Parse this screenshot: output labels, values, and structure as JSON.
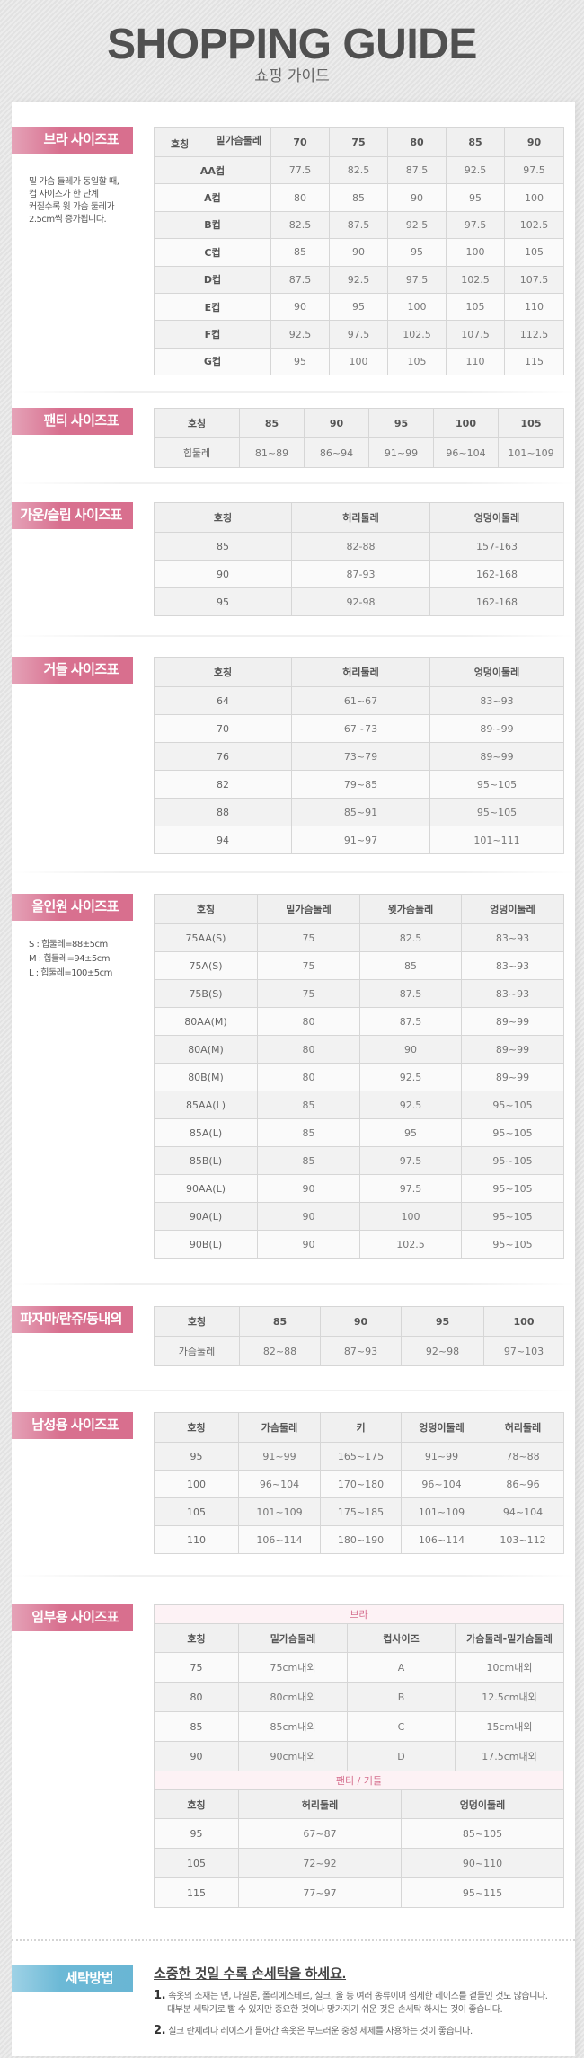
{
  "header": {
    "title": "SHOPPING GUIDE",
    "subtitle": "쇼핑 가이드"
  },
  "colors": {
    "label_pink": "#d8708f",
    "label_blue": "#69b6d4",
    "sub_header_pink": "#d56e8e"
  },
  "bra": {
    "label": "브라 사이즈표",
    "note": [
      "밑 가슴 둘레가 동일할 때,",
      "컵 사이즈가 한 단계",
      "커질수록 윗 가슴 둘레가",
      "2.5cm씩 증가됩니다."
    ],
    "corner_top": "밑가슴둘레",
    "corner_bottom": "호칭",
    "columns": [
      "70",
      "75",
      "80",
      "85",
      "90"
    ],
    "rows": [
      [
        "AA컵",
        "77.5",
        "82.5",
        "87.5",
        "92.5",
        "97.5"
      ],
      [
        "A컵",
        "80",
        "85",
        "90",
        "95",
        "100"
      ],
      [
        "B컵",
        "82.5",
        "87.5",
        "92.5",
        "97.5",
        "102.5"
      ],
      [
        "C컵",
        "85",
        "90",
        "95",
        "100",
        "105"
      ],
      [
        "D컵",
        "87.5",
        "92.5",
        "97.5",
        "102.5",
        "107.5"
      ],
      [
        "E컵",
        "90",
        "95",
        "100",
        "105",
        "110"
      ],
      [
        "F컵",
        "92.5",
        "97.5",
        "102.5",
        "107.5",
        "112.5"
      ],
      [
        "G컵",
        "95",
        "100",
        "105",
        "110",
        "115"
      ]
    ]
  },
  "panty": {
    "label": "팬티 사이즈표",
    "columns": [
      "호칭",
      "85",
      "90",
      "95",
      "100",
      "105"
    ],
    "rows": [
      [
        "힙둘레",
        "81~89",
        "86~94",
        "91~99",
        "96~104",
        "101~109"
      ]
    ]
  },
  "gown": {
    "label": "가운/슬립 사이즈표",
    "columns": [
      "호칭",
      "허리둘레",
      "엉덩이둘레"
    ],
    "rows": [
      [
        "85",
        "82-88",
        "157-163"
      ],
      [
        "90",
        "87-93",
        "162-168"
      ],
      [
        "95",
        "92-98",
        "162-168"
      ]
    ]
  },
  "girdle": {
    "label": "거들 사이즈표",
    "columns": [
      "호칭",
      "허리둘레",
      "엉덩이둘레"
    ],
    "rows": [
      [
        "64",
        "61~67",
        "83~93"
      ],
      [
        "70",
        "67~73",
        "89~99"
      ],
      [
        "76",
        "73~79",
        "89~99"
      ],
      [
        "82",
        "79~85",
        "95~105"
      ],
      [
        "88",
        "85~91",
        "95~105"
      ],
      [
        "94",
        "91~97",
        "101~111"
      ]
    ]
  },
  "allinone": {
    "label": "올인원 사이즈표",
    "note": [
      "S : 힙둘레=88±5cm",
      "M : 힙둘레=94±5cm",
      "L : 힙둘레=100±5cm"
    ],
    "columns": [
      "호칭",
      "밑가슴둘레",
      "윗가슴둘레",
      "엉덩이둘레"
    ],
    "rows": [
      [
        "75AA(S)",
        "75",
        "82.5",
        "83~93"
      ],
      [
        "75A(S)",
        "75",
        "85",
        "83~93"
      ],
      [
        "75B(S)",
        "75",
        "87.5",
        "83~93"
      ],
      [
        "80AA(M)",
        "80",
        "87.5",
        "89~99"
      ],
      [
        "80A(M)",
        "80",
        "90",
        "89~99"
      ],
      [
        "80B(M)",
        "80",
        "92.5",
        "89~99"
      ],
      [
        "85AA(L)",
        "85",
        "92.5",
        "95~105"
      ],
      [
        "85A(L)",
        "85",
        "95",
        "95~105"
      ],
      [
        "85B(L)",
        "85",
        "97.5",
        "95~105"
      ],
      [
        "90AA(L)",
        "90",
        "97.5",
        "95~105"
      ],
      [
        "90A(L)",
        "90",
        "100",
        "95~105"
      ],
      [
        "90B(L)",
        "90",
        "102.5",
        "95~105"
      ]
    ]
  },
  "pajama": {
    "label": "파자마/란쥬/동내의",
    "columns": [
      "호칭",
      "85",
      "90",
      "95",
      "100"
    ],
    "rows": [
      [
        "가슴둘레",
        "82~88",
        "87~93",
        "92~98",
        "97~103"
      ]
    ]
  },
  "mens": {
    "label": "남성용 사이즈표",
    "columns": [
      "호칭",
      "가슴둘레",
      "키",
      "엉덩이둘레",
      "허리둘레"
    ],
    "rows": [
      [
        "95",
        "91~99",
        "165~175",
        "91~99",
        "78~88"
      ],
      [
        "100",
        "96~104",
        "170~180",
        "96~104",
        "86~96"
      ],
      [
        "105",
        "101~109",
        "175~185",
        "101~109",
        "94~104"
      ],
      [
        "110",
        "106~114",
        "180~190",
        "106~114",
        "103~112"
      ]
    ]
  },
  "maternity": {
    "label": "임부용 사이즈표",
    "bra_title": "브라",
    "bra_columns": [
      "호칭",
      "밑가슴둘레",
      "컵사이즈",
      "가슴둘레-밑가슴둘레"
    ],
    "bra_rows": [
      [
        "75",
        "75cm내외",
        "A",
        "10cm내외"
      ],
      [
        "80",
        "80cm내외",
        "B",
        "12.5cm내외"
      ],
      [
        "85",
        "85cm내외",
        "C",
        "15cm내외"
      ],
      [
        "90",
        "90cm내외",
        "D",
        "17.5cm내외"
      ]
    ],
    "panty_title": "팬티 / 거들",
    "panty_columns": [
      "호칭",
      "허리둘레",
      "엉덩이둘레"
    ],
    "panty_rows": [
      [
        "95",
        "67~87",
        "85~105"
      ],
      [
        "105",
        "72~92",
        "90~110"
      ],
      [
        "115",
        "77~97",
        "95~115"
      ]
    ]
  },
  "washing": {
    "label": "세탁방법",
    "heading": "소중한 것일 수록 손세탁을 하세요.",
    "items": [
      {
        "num": "1.",
        "lines": [
          "속옷의 소재는 면, 나일론, 폴리에스테르, 실크, 울 등 여러 종류이며 섬세한 레이스를 곁들인 것도 많습니다.",
          "대부분 세탁기로 빨 수 있지만 중요한 것이나 망가지기 쉬운 것은 손세탁 하시는 것이 좋습니다."
        ]
      },
      {
        "num": "2.",
        "lines": [
          "실크 란제리나 레이스가 들어간 속옷은 부드러운 중성 세제를 사용하는 것이 좋습니다."
        ]
      }
    ]
  }
}
